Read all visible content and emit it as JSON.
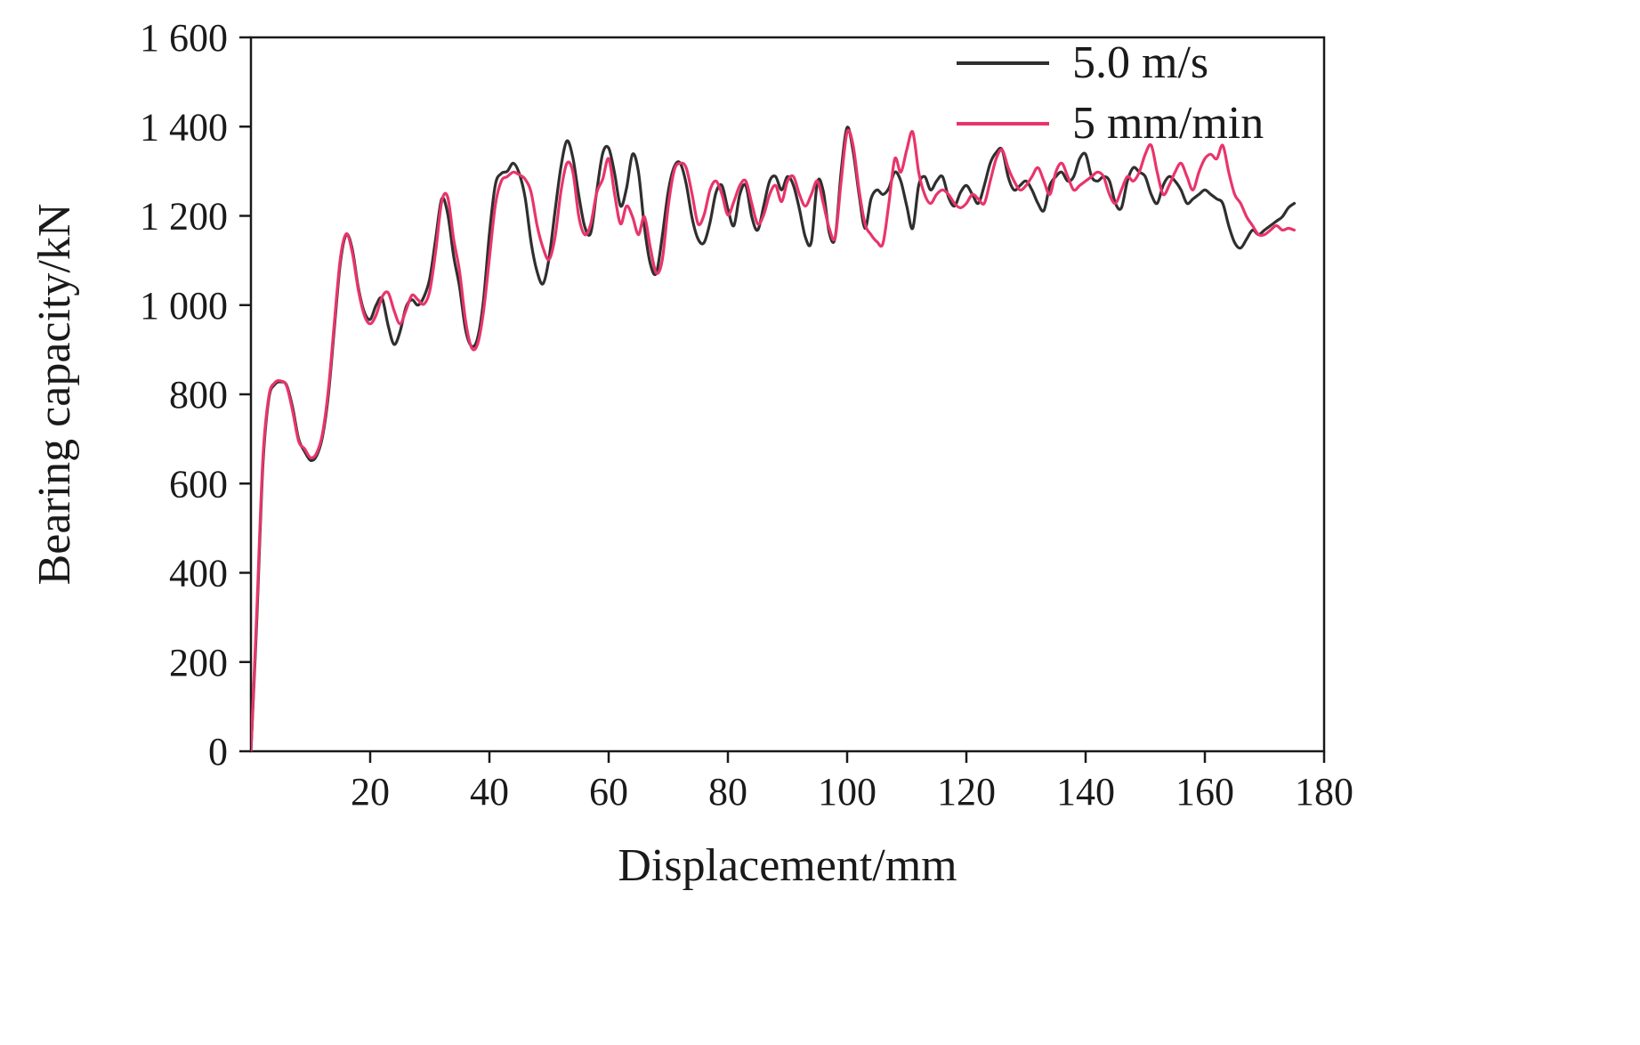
{
  "figure": {
    "background": "#ffffff",
    "text_color": "#1a1a1a",
    "axis_color": "#1a1a1a"
  },
  "chart_data": {
    "type": "line",
    "title": "",
    "xlabel": "Displacement/mm",
    "ylabel": "Bearing capacity/kN",
    "xlim": [
      0,
      180
    ],
    "ylim": [
      0,
      1600
    ],
    "grid": false,
    "legend_position": "top-right-inside",
    "x_ticks": [
      20,
      40,
      60,
      80,
      100,
      120,
      140,
      160,
      180
    ],
    "x_tick_labels": [
      "20",
      "40",
      "60",
      "80",
      "100",
      "120",
      "140",
      "160",
      "180"
    ],
    "y_ticks": [
      0,
      200,
      400,
      600,
      800,
      1000,
      1200,
      1400,
      1600
    ],
    "y_tick_labels": [
      "0",
      "200",
      "400",
      "600",
      "800",
      "1 000",
      "1 200",
      "1 400",
      "1 600"
    ],
    "x": [
      0,
      1,
      2,
      3,
      4,
      5,
      6,
      7,
      8,
      9,
      10,
      11,
      12,
      13,
      14,
      15,
      16,
      17,
      18,
      19,
      20,
      21,
      22,
      23,
      24,
      25,
      26,
      27,
      28,
      29,
      30,
      31,
      32,
      33,
      34,
      35,
      36,
      37,
      38,
      39,
      40,
      41,
      42,
      43,
      44,
      45,
      46,
      47,
      48,
      49,
      50,
      51,
      52,
      53,
      54,
      55,
      56,
      57,
      58,
      59,
      60,
      61,
      62,
      63,
      64,
      65,
      66,
      67,
      68,
      69,
      70,
      71,
      72,
      73,
      74,
      75,
      76,
      77,
      78,
      79,
      80,
      81,
      82,
      83,
      84,
      85,
      86,
      87,
      88,
      89,
      90,
      91,
      92,
      93,
      94,
      95,
      96,
      97,
      98,
      99,
      100,
      101,
      102,
      103,
      104,
      105,
      106,
      107,
      108,
      109,
      110,
      111,
      112,
      113,
      114,
      115,
      116,
      117,
      118,
      119,
      120,
      121,
      122,
      123,
      124,
      125,
      126,
      127,
      128,
      129,
      130,
      131,
      132,
      133,
      134,
      135,
      136,
      137,
      138,
      139,
      140,
      141,
      142,
      143,
      144,
      145,
      146,
      147,
      148,
      149,
      150,
      151,
      152,
      153,
      154,
      155,
      156,
      157,
      158,
      159,
      160,
      161,
      162,
      163,
      164,
      165,
      166,
      167,
      168,
      169,
      170,
      171,
      172,
      173,
      174,
      175
    ],
    "series": [
      {
        "name": "5.0 m/s",
        "color": "#2f2f2f",
        "values": [
          0,
          300,
          640,
          790,
          822,
          828,
          820,
          770,
          700,
          672,
          652,
          662,
          705,
          800,
          950,
          1095,
          1158,
          1125,
          1040,
          985,
          968,
          1000,
          1015,
          955,
          912,
          940,
          995,
          1012,
          1000,
          1018,
          1060,
          1150,
          1238,
          1205,
          1110,
          1040,
          945,
          908,
          925,
          1010,
          1160,
          1270,
          1295,
          1300,
          1318,
          1295,
          1240,
          1140,
          1075,
          1048,
          1105,
          1210,
          1310,
          1368,
          1330,
          1245,
          1175,
          1162,
          1255,
          1340,
          1352,
          1295,
          1222,
          1262,
          1338,
          1298,
          1175,
          1092,
          1072,
          1155,
          1255,
          1310,
          1318,
          1272,
          1195,
          1148,
          1140,
          1185,
          1252,
          1268,
          1215,
          1178,
          1248,
          1268,
          1198,
          1168,
          1222,
          1278,
          1288,
          1258,
          1288,
          1268,
          1215,
          1152,
          1142,
          1275,
          1255,
          1162,
          1152,
          1300,
          1398,
          1345,
          1248,
          1172,
          1238,
          1258,
          1248,
          1262,
          1298,
          1278,
          1222,
          1172,
          1268,
          1288,
          1258,
          1278,
          1288,
          1242,
          1222,
          1252,
          1268,
          1248,
          1228,
          1268,
          1318,
          1342,
          1348,
          1288,
          1258,
          1268,
          1278,
          1258,
          1228,
          1212,
          1268,
          1288,
          1298,
          1278,
          1288,
          1328,
          1338,
          1288,
          1278,
          1288,
          1278,
          1228,
          1218,
          1278,
          1308,
          1298,
          1288,
          1248,
          1228,
          1268,
          1288,
          1278,
          1258,
          1228,
          1238,
          1248,
          1258,
          1248,
          1238,
          1228,
          1178,
          1140,
          1128,
          1148,
          1168,
          1158,
          1168,
          1178,
          1188,
          1198,
          1218,
          1228
        ]
      },
      {
        "name": "5 mm/min",
        "color": "#e8356b",
        "values": [
          0,
          320,
          655,
          795,
          826,
          830,
          818,
          762,
          695,
          678,
          658,
          668,
          712,
          812,
          962,
          1105,
          1160,
          1118,
          1035,
          978,
          958,
          978,
          1018,
          1028,
          988,
          958,
          988,
          1022,
          1012,
          1002,
          1032,
          1122,
          1232,
          1242,
          1148,
          1075,
          965,
          905,
          912,
          985,
          1105,
          1225,
          1278,
          1288,
          1298,
          1292,
          1282,
          1252,
          1178,
          1128,
          1102,
          1152,
          1255,
          1318,
          1298,
          1198,
          1158,
          1182,
          1252,
          1282,
          1328,
          1248,
          1182,
          1222,
          1198,
          1158,
          1198,
          1128,
          1072,
          1102,
          1222,
          1302,
          1318,
          1308,
          1248,
          1182,
          1202,
          1258,
          1278,
          1248,
          1202,
          1232,
          1268,
          1278,
          1228,
          1182,
          1202,
          1248,
          1268,
          1232,
          1278,
          1288,
          1248,
          1222,
          1248,
          1278,
          1228,
          1172,
          1152,
          1278,
          1388,
          1358,
          1258,
          1182,
          1158,
          1142,
          1138,
          1228,
          1328,
          1298,
          1348,
          1388,
          1298,
          1248,
          1228,
          1248,
          1258,
          1248,
          1228,
          1218,
          1228,
          1248,
          1238,
          1228,
          1278,
          1328,
          1348,
          1308,
          1278,
          1258,
          1268,
          1288,
          1308,
          1278,
          1248,
          1298,
          1318,
          1288,
          1258,
          1268,
          1278,
          1288,
          1298,
          1288,
          1248,
          1228,
          1258,
          1288,
          1278,
          1298,
          1338,
          1358,
          1298,
          1248,
          1268,
          1298,
          1318,
          1288,
          1258,
          1298,
          1328,
          1338,
          1328,
          1358,
          1298,
          1248,
          1228,
          1198,
          1178,
          1158,
          1158,
          1168,
          1178,
          1168,
          1172,
          1168
        ]
      }
    ]
  }
}
